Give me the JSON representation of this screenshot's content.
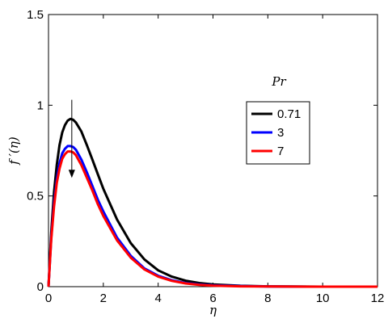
{
  "chart_data": {
    "type": "line",
    "title": "",
    "xlabel": "η",
    "ylabel": "f ′(η)",
    "xlim": [
      0,
      12
    ],
    "ylim": [
      0,
      1.5
    ],
    "xticks": [
      "0",
      "2",
      "4",
      "6",
      "8",
      "10",
      "12"
    ],
    "yticks": [
      "0",
      "0.5",
      "1",
      "1.5"
    ],
    "grid": false,
    "legend": {
      "title": "Pr",
      "placement": "center-right"
    },
    "series": [
      {
        "name": "0.71",
        "color": "#000000",
        "x": [
          0,
          0.1,
          0.2,
          0.3,
          0.4,
          0.5,
          0.6,
          0.7,
          0.8,
          0.9,
          1.0,
          1.2,
          1.4,
          1.6,
          1.8,
          2.0,
          2.5,
          3.0,
          3.5,
          4.0,
          4.5,
          5.0,
          5.5,
          6.0,
          7.0,
          8.0,
          10.0,
          12.0
        ],
        "y": [
          0,
          0.3,
          0.52,
          0.67,
          0.78,
          0.85,
          0.89,
          0.915,
          0.925,
          0.92,
          0.905,
          0.855,
          0.78,
          0.7,
          0.62,
          0.54,
          0.37,
          0.24,
          0.15,
          0.09,
          0.055,
          0.033,
          0.02,
          0.012,
          0.005,
          0.002,
          0.0,
          0.0
        ]
      },
      {
        "name": "3",
        "color": "#0000ff",
        "x": [
          0,
          0.1,
          0.2,
          0.3,
          0.4,
          0.5,
          0.6,
          0.7,
          0.8,
          0.9,
          1.0,
          1.2,
          1.4,
          1.6,
          1.8,
          2.0,
          2.5,
          3.0,
          3.5,
          4.0,
          4.5,
          5.0,
          5.5,
          6.0,
          7.0,
          8.0,
          10.0,
          12.0
        ],
        "y": [
          0,
          0.27,
          0.46,
          0.59,
          0.68,
          0.735,
          0.76,
          0.775,
          0.775,
          0.77,
          0.755,
          0.7,
          0.63,
          0.555,
          0.48,
          0.415,
          0.27,
          0.17,
          0.1,
          0.06,
          0.035,
          0.02,
          0.012,
          0.007,
          0.003,
          0.001,
          0.0,
          0.0
        ]
      },
      {
        "name": "7",
        "color": "#ff0000",
        "x": [
          0,
          0.1,
          0.2,
          0.3,
          0.4,
          0.5,
          0.6,
          0.7,
          0.8,
          0.9,
          1.0,
          1.2,
          1.4,
          1.6,
          1.8,
          2.0,
          2.5,
          3.0,
          3.5,
          4.0,
          4.5,
          5.0,
          5.5,
          6.0,
          7.0,
          8.0,
          10.0,
          12.0
        ],
        "y": [
          0,
          0.26,
          0.44,
          0.57,
          0.65,
          0.705,
          0.73,
          0.745,
          0.745,
          0.74,
          0.725,
          0.67,
          0.6,
          0.53,
          0.455,
          0.39,
          0.255,
          0.16,
          0.095,
          0.055,
          0.032,
          0.018,
          0.01,
          0.006,
          0.002,
          0.001,
          0.0,
          0.0
        ]
      }
    ],
    "annotations": [
      {
        "type": "arrow",
        "direction": "down",
        "from": [
          0.85,
          1.03
        ],
        "to": [
          0.85,
          0.6
        ]
      }
    ]
  }
}
